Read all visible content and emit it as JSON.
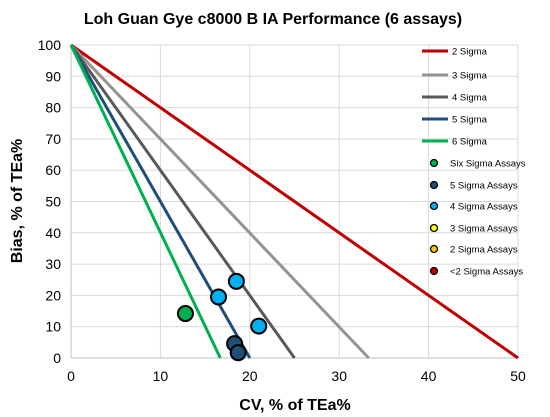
{
  "chart_data": {
    "type": "scatter",
    "title": "Loh Guan Gye c8000 B IA Performance (6 assays)",
    "xlabel": "CV, % of TEa%",
    "ylabel": "Bias, % of TEa%",
    "xlim": [
      0,
      50
    ],
    "ylim": [
      0,
      100
    ],
    "x_ticks": [
      0,
      10,
      20,
      30,
      40,
      50
    ],
    "y_ticks": [
      0,
      10,
      20,
      30,
      40,
      50,
      60,
      70,
      80,
      90,
      100
    ],
    "grid": true,
    "legend_position": "right",
    "lines": [
      {
        "name": "2 Sigma",
        "color": "#c00000",
        "points": [
          [
            0,
            100
          ],
          [
            50,
            0
          ]
        ]
      },
      {
        "name": "3 Sigma",
        "color": "#939393",
        "points": [
          [
            0,
            100
          ],
          [
            33.3,
            0
          ]
        ]
      },
      {
        "name": "4 Sigma",
        "color": "#595959",
        "points": [
          [
            0,
            100
          ],
          [
            25,
            0
          ]
        ]
      },
      {
        "name": "5 Sigma",
        "color": "#1f4e79",
        "points": [
          [
            0,
            100
          ],
          [
            20,
            0
          ]
        ]
      },
      {
        "name": "6 Sigma",
        "color": "#00b050",
        "points": [
          [
            0,
            100
          ],
          [
            16.7,
            0
          ]
        ]
      }
    ],
    "marker_legend": [
      {
        "name": "Six Sigma Assays",
        "color": "#00b050"
      },
      {
        "name": "5 Sigma Assays",
        "color": "#1f4e79"
      },
      {
        "name": "4 Sigma Assays",
        "color": "#00b0f0"
      },
      {
        "name": "3 Sigma Assays",
        "color": "#ffff00"
      },
      {
        "name": "2 Sigma Assays",
        "color": "#ffc000"
      },
      {
        "name": "<2 Sigma Assays",
        "color": "#c00000"
      }
    ],
    "points": [
      {
        "x": 12.8,
        "y": 14.2,
        "color": "#00b050"
      },
      {
        "x": 18.3,
        "y": 4.6,
        "color": "#1f4e79"
      },
      {
        "x": 18.7,
        "y": 1.7,
        "color": "#1f4e79"
      },
      {
        "x": 18.5,
        "y": 24.5,
        "color": "#00b0f0"
      },
      {
        "x": 16.5,
        "y": 19.5,
        "color": "#00b0f0"
      },
      {
        "x": 21.0,
        "y": 10.2,
        "color": "#00b0f0"
      }
    ]
  }
}
